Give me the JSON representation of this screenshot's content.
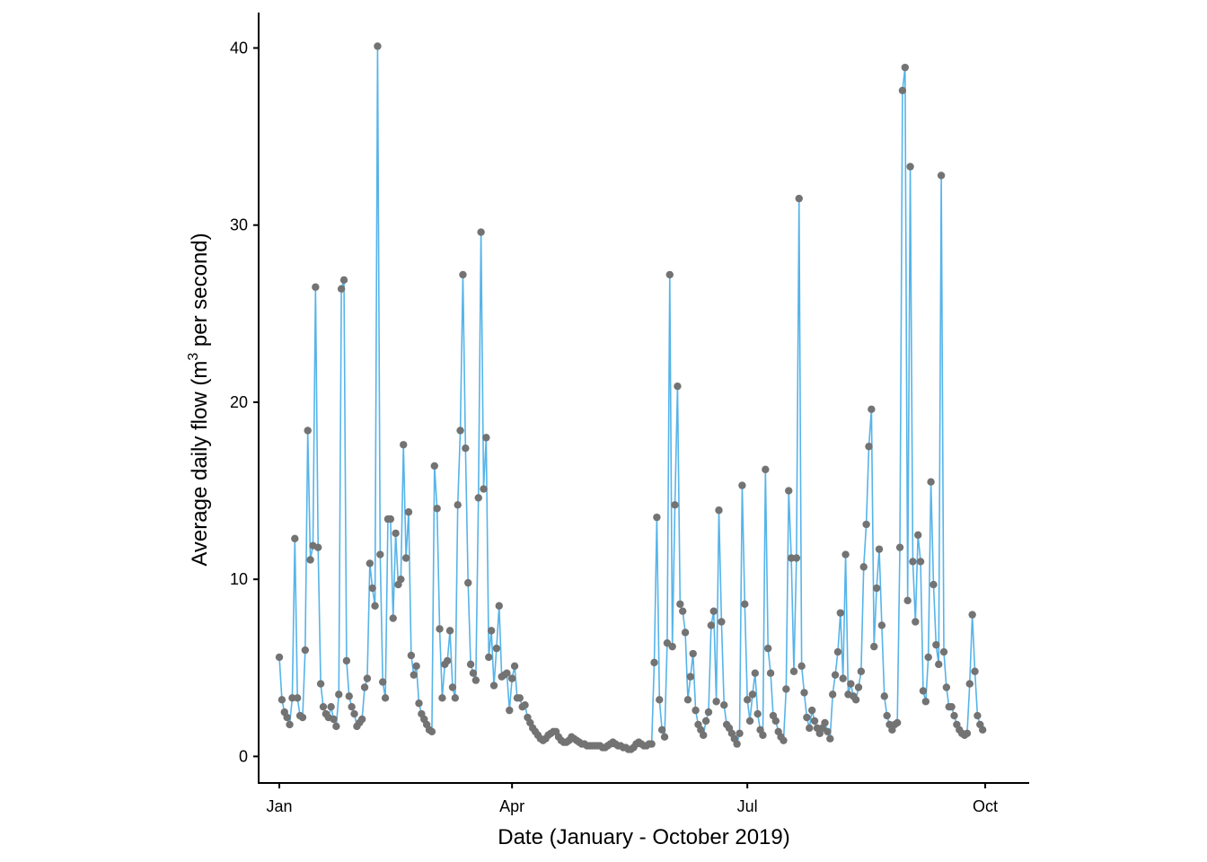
{
  "chart_data": {
    "type": "line",
    "title": "",
    "xlabel": "Date (January - October 2019)",
    "ylabel_parts": [
      "Average daily flow (m",
      "3",
      " per second)"
    ],
    "ylabel": "Average daily flow (m3 per second)",
    "x_start_date": "2019-01-01",
    "x_unit": "day",
    "xlim_days": [
      -8,
      290
    ],
    "ylim": [
      -1.5,
      42
    ],
    "x_ticks": [
      {
        "label": "Jan",
        "day": 0
      },
      {
        "label": "Apr",
        "day": 90
      },
      {
        "label": "Jul",
        "day": 181
      },
      {
        "label": "Oct",
        "day": 273
      }
    ],
    "y_ticks": [
      {
        "label": "0",
        "value": 0
      },
      {
        "label": "10",
        "value": 10
      },
      {
        "label": "20",
        "value": 20
      },
      {
        "label": "30",
        "value": 30
      },
      {
        "label": "40",
        "value": 40
      }
    ],
    "grid": false,
    "legend": "none",
    "colors": {
      "line": "#56B4E9",
      "point": "#737373",
      "axis": "#000000"
    },
    "series": [
      {
        "name": "Average daily flow",
        "values": [
          5.6,
          3.2,
          2.5,
          2.2,
          1.8,
          3.3,
          12.3,
          3.3,
          2.3,
          2.2,
          6.0,
          18.4,
          11.1,
          11.9,
          26.5,
          11.8,
          4.1,
          2.8,
          2.4,
          2.2,
          2.8,
          2.1,
          1.7,
          3.5,
          26.4,
          26.9,
          5.4,
          3.4,
          2.8,
          2.4,
          1.7,
          1.9,
          2.1,
          3.9,
          4.4,
          10.9,
          9.5,
          8.5,
          40.1,
          11.4,
          4.2,
          3.3,
          13.4,
          13.4,
          7.8,
          12.6,
          9.7,
          10.0,
          17.6,
          11.2,
          13.8,
          5.7,
          4.6,
          5.1,
          3.0,
          2.4,
          2.1,
          1.8,
          1.5,
          1.4,
          16.4,
          14.0,
          7.2,
          3.3,
          5.2,
          5.4,
          7.1,
          3.9,
          3.3,
          14.2,
          18.4,
          27.2,
          17.4,
          9.8,
          5.2,
          4.7,
          4.3,
          14.6,
          29.6,
          15.1,
          18.0,
          5.6,
          7.1,
          4.0,
          6.1,
          8.5,
          4.5,
          4.6,
          4.7,
          2.6,
          4.4,
          5.1,
          3.3,
          3.3,
          2.8,
          2.9,
          2.2,
          1.9,
          1.6,
          1.4,
          1.2,
          1.0,
          0.9,
          1.0,
          1.2,
          1.3,
          1.4,
          1.4,
          1.1,
          0.9,
          0.8,
          0.8,
          0.9,
          1.1,
          1.0,
          0.9,
          0.8,
          0.7,
          0.7,
          0.6,
          0.6,
          0.6,
          0.6,
          0.6,
          0.6,
          0.5,
          0.5,
          0.6,
          0.7,
          0.8,
          0.7,
          0.6,
          0.6,
          0.5,
          0.5,
          0.4,
          0.4,
          0.5,
          0.7,
          0.8,
          0.7,
          0.6,
          0.6,
          0.7,
          0.7,
          5.3,
          13.5,
          3.2,
          1.5,
          1.1,
          6.4,
          27.2,
          6.2,
          14.2,
          20.9,
          8.6,
          8.2,
          7.0,
          3.2,
          4.5,
          5.8,
          2.6,
          1.8,
          1.5,
          1.2,
          2.0,
          2.5,
          7.4,
          8.2,
          3.1,
          13.9,
          7.6,
          2.9,
          1.8,
          1.6,
          1.3,
          1.0,
          0.7,
          1.3,
          15.3,
          8.6,
          3.2,
          2.0,
          3.5,
          4.7,
          2.4,
          1.5,
          1.2,
          16.2,
          6.1,
          4.7,
          2.3,
          2.0,
          1.4,
          1.1,
          0.9,
          3.8,
          15.0,
          11.2,
          4.8,
          11.2,
          31.5,
          5.1,
          3.6,
          2.2,
          1.6,
          2.6,
          2.0,
          1.6,
          1.3,
          1.6,
          1.9,
          1.4,
          1.0,
          3.5,
          4.6,
          5.9,
          8.1,
          4.4,
          11.4,
          3.5,
          4.1,
          3.4,
          3.2,
          3.9,
          4.8,
          10.7,
          13.1,
          17.5,
          19.6,
          6.2,
          9.5,
          11.7,
          7.4,
          3.4,
          2.3,
          1.8,
          1.5,
          1.8,
          1.9,
          11.8,
          37.6,
          38.9,
          8.8,
          33.3,
          11.0,
          7.6,
          12.5,
          11.0,
          3.7,
          3.1,
          5.6,
          15.5,
          9.7,
          6.3,
          5.2,
          32.8,
          5.9,
          3.9,
          2.8,
          2.8,
          2.3,
          1.8,
          1.5,
          1.3,
          1.2,
          1.3,
          4.1,
          8.0,
          4.8,
          2.3,
          1.8,
          1.5
        ]
      }
    ]
  }
}
